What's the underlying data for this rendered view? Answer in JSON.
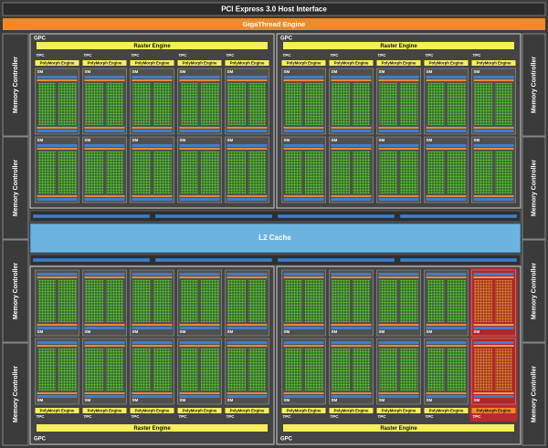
{
  "header": {
    "title": "PCI Express 3.0 Host Interface",
    "engine": "GigaThread Engine"
  },
  "memory_controllers": {
    "left": [
      "Memory Controller",
      "Memory Controller",
      "Memory Controller",
      "Memory Controller"
    ],
    "right": [
      "Memory Controller",
      "Memory Controller",
      "Memory Controller",
      "Memory Controller"
    ]
  },
  "l2_cache": "L2 Cache",
  "gpcs": [
    {
      "label": "GPC",
      "raster_engine": "Raster Engine",
      "tpcs": [
        {
          "label": "TPC",
          "polymorph_engine": "PolyMorph Engine",
          "sms": [
            "SM",
            "SM"
          ]
        },
        {
          "label": "TPC",
          "polymorph_engine": "PolyMorph Engine",
          "sms": [
            "SM",
            "SM"
          ]
        },
        {
          "label": "TPC",
          "polymorph_engine": "PolyMorph Engine",
          "sms": [
            "SM",
            "SM"
          ]
        },
        {
          "label": "TPC",
          "polymorph_engine": "PolyMorph Engine",
          "sms": [
            "SM",
            "SM"
          ]
        },
        {
          "label": "TPC",
          "polymorph_engine": "PolyMorph Engine",
          "sms": [
            "SM",
            "SM"
          ]
        }
      ]
    },
    {
      "label": "GPC",
      "raster_engine": "Raster Engine",
      "tpcs": [
        {
          "label": "TPC",
          "polymorph_engine": "PolyMorph Engine",
          "sms": [
            "SM",
            "SM"
          ]
        },
        {
          "label": "TPC",
          "polymorph_engine": "PolyMorph Engine",
          "sms": [
            "SM",
            "SM"
          ]
        },
        {
          "label": "TPC",
          "polymorph_engine": "PolyMorph Engine",
          "sms": [
            "SM",
            "SM"
          ]
        },
        {
          "label": "TPC",
          "polymorph_engine": "PolyMorph Engine",
          "sms": [
            "SM",
            "SM"
          ]
        },
        {
          "label": "TPC",
          "polymorph_engine": "PolyMorph Engine",
          "sms": [
            "SM",
            "SM"
          ]
        }
      ]
    },
    {
      "label": "GPC",
      "raster_engine": "Raster Engine",
      "tpcs": [
        {
          "label": "TPC",
          "polymorph_engine": "PolyMorph Engine",
          "sms": [
            "SM",
            "SM"
          ]
        },
        {
          "label": "TPC",
          "polymorph_engine": "PolyMorph Engine",
          "sms": [
            "SM",
            "SM"
          ]
        },
        {
          "label": "TPC",
          "polymorph_engine": "PolyMorph Engine",
          "sms": [
            "SM",
            "SM"
          ]
        },
        {
          "label": "TPC",
          "polymorph_engine": "PolyMorph Engine",
          "sms": [
            "SM",
            "SM"
          ]
        },
        {
          "label": "TPC",
          "polymorph_engine": "PolyMorph Engine",
          "sms": [
            "SM",
            "SM"
          ]
        }
      ]
    },
    {
      "label": "GPC",
      "raster_engine": "Raster Engine",
      "tpcs": [
        {
          "label": "TPC",
          "polymorph_engine": "PolyMorph Engine",
          "sms": [
            "SM",
            "SM"
          ]
        },
        {
          "label": "TPC",
          "polymorph_engine": "PolyMorph Engine",
          "sms": [
            "SM",
            "SM"
          ]
        },
        {
          "label": "TPC",
          "polymorph_engine": "PolyMorph Engine",
          "sms": [
            "SM",
            "SM"
          ]
        },
        {
          "label": "TPC",
          "polymorph_engine": "PolyMorph Engine",
          "sms": [
            "SM",
            "SM"
          ]
        },
        {
          "label": "TPC",
          "polymorph_engine": "PolyMorph Engine",
          "sms": [
            "SM",
            "SM"
          ]
        }
      ]
    }
  ]
}
